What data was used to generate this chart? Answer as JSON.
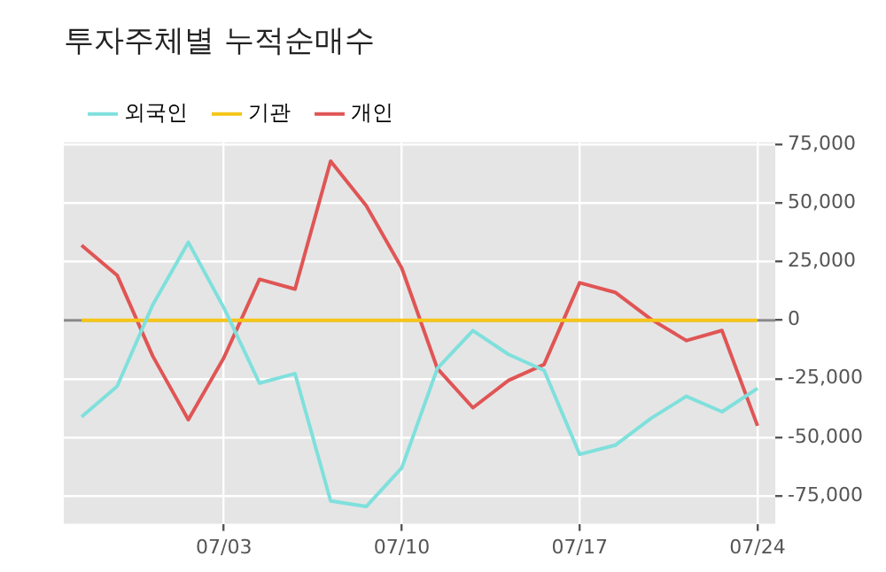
{
  "chart_data": {
    "type": "line",
    "title": "투자주체별 누적순매수",
    "categories": [
      null,
      null,
      null,
      null,
      "07/03",
      null,
      null,
      null,
      null,
      "07/10",
      null,
      null,
      null,
      null,
      "07/17",
      null,
      null,
      null,
      null,
      "07/24"
    ],
    "series": [
      {
        "name": "외국인",
        "color": "#7fe0dc",
        "values": [
          -41300,
          -28200,
          6600,
          33300,
          5300,
          -26900,
          -22800,
          -77200,
          -79600,
          -63100,
          -20600,
          -4400,
          -14600,
          -21400,
          -57300,
          -53400,
          -42000,
          -32500,
          -39100,
          -29100
        ]
      },
      {
        "name": "기관",
        "color": "#f5c518",
        "values": [
          0,
          0,
          0,
          0,
          0,
          0,
          0,
          0,
          0,
          0,
          0,
          0,
          0,
          0,
          0,
          0,
          0,
          0,
          0,
          0
        ]
      },
      {
        "name": "개인",
        "color": "#e05555",
        "values": [
          32000,
          19200,
          -15300,
          -42500,
          -16000,
          17500,
          13300,
          68000,
          49000,
          22300,
          -20600,
          -37400,
          -25700,
          -18900,
          16000,
          11900,
          500,
          -8700,
          -4400,
          -45100
        ]
      }
    ],
    "ylim": [
      -87000,
      76000
    ],
    "yticks": [
      {
        "value": -75000,
        "label": "-75,000"
      },
      {
        "value": -50000,
        "label": "-50,000"
      },
      {
        "value": -25000,
        "label": "-25,000"
      },
      0,
      {
        "value": 25000,
        "label": "25,000"
      },
      {
        "value": 50000,
        "label": "50,000"
      },
      {
        "value": 75000,
        "label": "75,000"
      }
    ],
    "ref_lines": [
      {
        "axis": "y",
        "value": 0,
        "color": "#888888"
      }
    ],
    "grid": true,
    "legend": "top left",
    "marker": "none",
    "line_style": "solid"
  }
}
